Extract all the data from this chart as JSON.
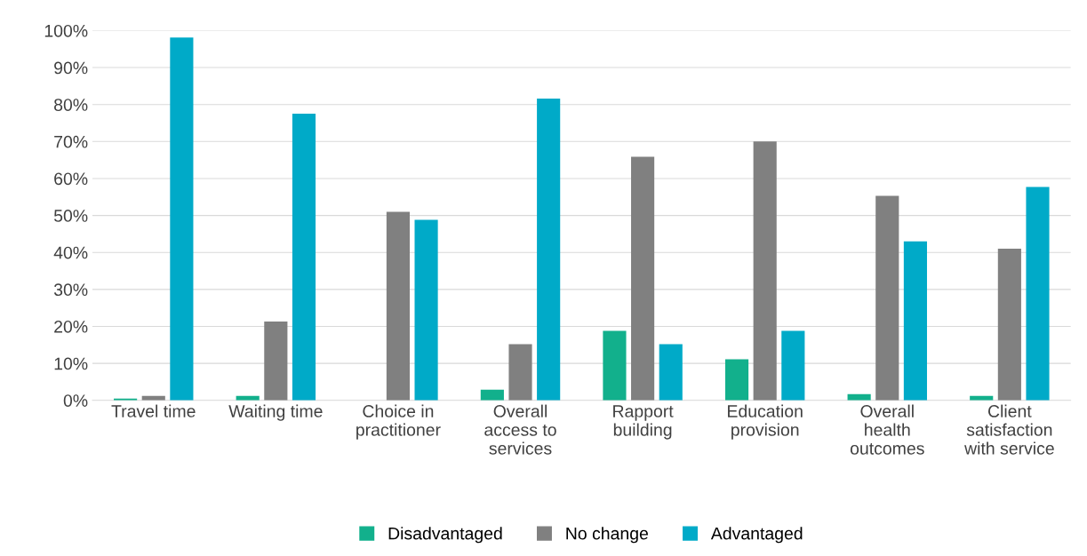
{
  "chart_data": {
    "type": "bar",
    "categories": [
      "Travel time",
      "Waiting time",
      "Choice in\npractitioner",
      "Overall\naccess to\nservices",
      "Rapport\nbuilding",
      "Education\nprovision",
      "Overall\nhealth\noutcomes",
      "Client\nsatisfaction\nwith service"
    ],
    "series": [
      {
        "name": "Disadvantaged",
        "color": "#12b08c",
        "values": [
          0.5,
          1.2,
          0,
          2.9,
          18.8,
          11.1,
          1.7,
          1.2
        ]
      },
      {
        "name": "No change",
        "color": "#808080",
        "values": [
          1.2,
          21.3,
          51,
          15.2,
          65.9,
          70,
          55.3,
          41
        ]
      },
      {
        "name": "Advantaged",
        "color": "#00aac8",
        "values": [
          98.1,
          77.5,
          48.8,
          81.6,
          15.2,
          18.8,
          43,
          57.7
        ]
      }
    ],
    "ylim": [
      0,
      100
    ],
    "yticks": [
      {
        "value": 0,
        "label": "0%"
      },
      {
        "value": 10,
        "label": "10%"
      },
      {
        "value": 20,
        "label": "20%"
      },
      {
        "value": 30,
        "label": "30%"
      },
      {
        "value": 40,
        "label": "40%"
      },
      {
        "value": 50,
        "label": "50%"
      },
      {
        "value": 60,
        "label": "60%"
      },
      {
        "value": 70,
        "label": "70%"
      },
      {
        "value": 80,
        "label": "80%"
      },
      {
        "value": 90,
        "label": "90%"
      },
      {
        "value": 100,
        "label": "100%"
      }
    ],
    "grid": "y",
    "legend": "bottom"
  }
}
